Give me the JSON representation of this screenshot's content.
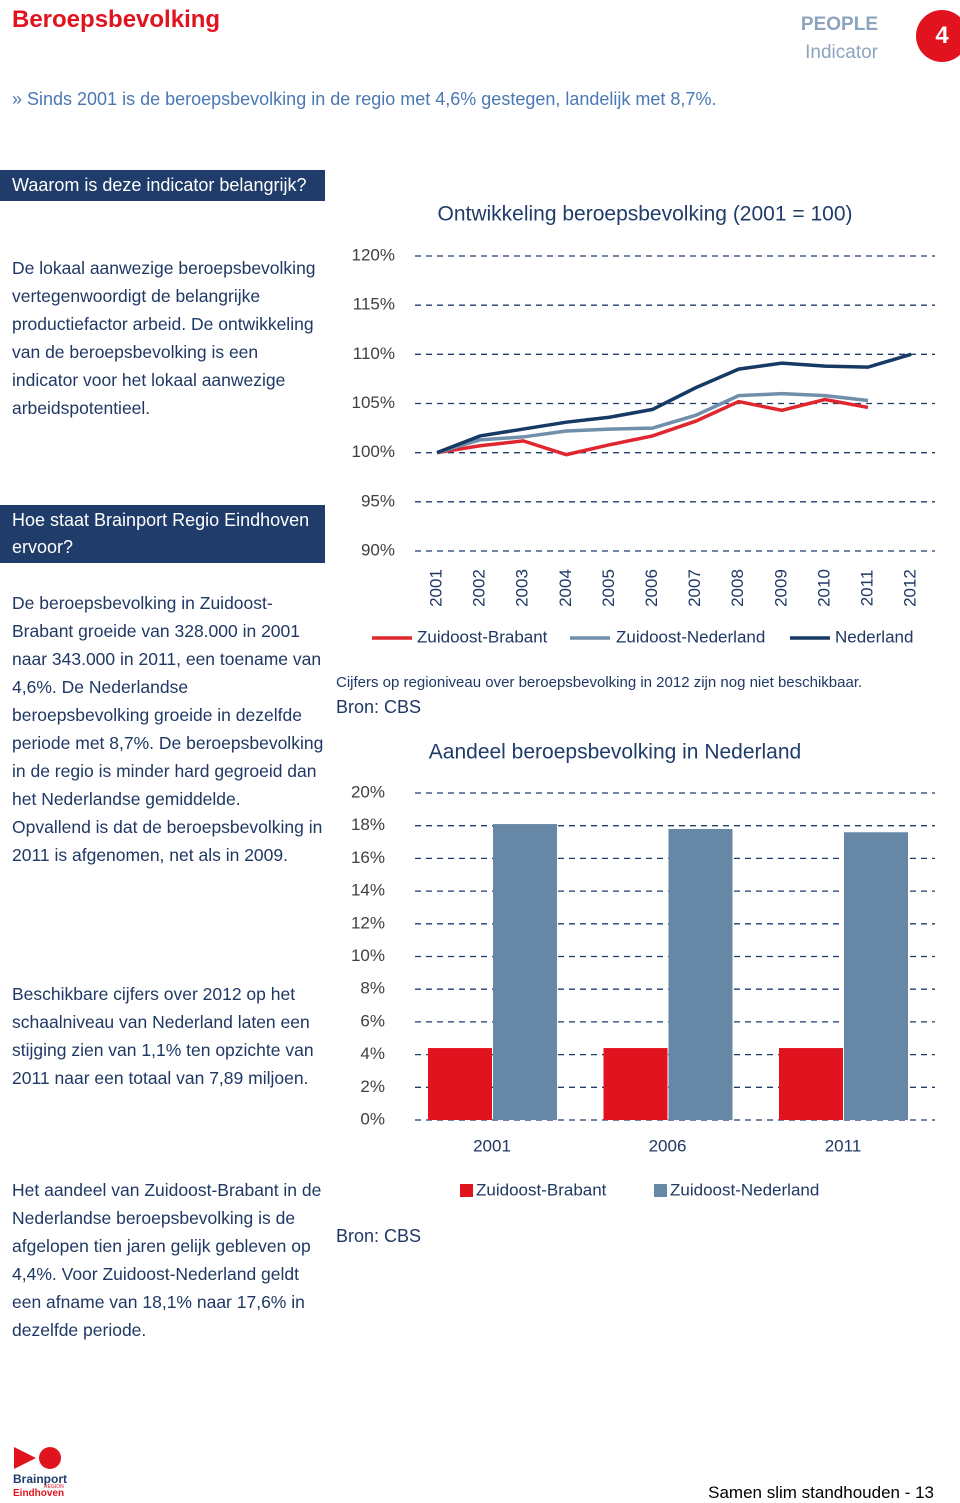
{
  "header": {
    "title": "Beroepsbevolking",
    "tag1": "PEOPLE",
    "tag2": "Indicator",
    "number": "4",
    "summary": "» Sinds 2001 is de beroepsbevolking in de regio met 4,6% gestegen, landelijk met 8,7%."
  },
  "sidebar": {
    "box1": "Waarom is deze indicator belangrijk?",
    "p1": "De lokaal aanwezige beroepsbevolking vertegenwoordigt de belangrijke productiefactor arbeid. De ontwikkeling van de beroepsbevolking is een indicator voor het lokaal aanwezige arbeidspotentieel.",
    "box2": "Hoe staat Brainport Regio Eindhoven  ervoor?",
    "p2": "De beroepsbevolking in Zuidoost-Brabant groeide van 328.000 in 2001 naar 343.000 in 2011, een toename  van 4,6%. De Nederlandse beroepsbevolking groeide in dezelfde periode met 8,7%. De beroepsbevolking in de regio is minder hard gegroeid dan het Nederlandse gemiddelde. Opvallend is dat de beroepsbevolking in 2011 is afgenomen, net als in 2009.",
    "p3": "Beschikbare cijfers over 2012 op het schaalniveau van Nederland laten een stijging zien van 1,1% ten opzichte van 2011 naar een totaal van 7,89 miljoen.",
    "p4": "Het aandeel van Zuidoost-Brabant in de Nederlandse beroepsbevolking is de afgelopen tien jaren gelijk gebleven op 4,4%. Voor Zuidoost-Nederland geldt een afname van 18,1% naar 17,6% in dezelfde periode."
  },
  "notes": {
    "line_note": "Cijfers op regioniveau over beroepsbevolking in 2012 zijn nog niet beschikbaar.",
    "source1": "Bron: CBS",
    "source2": "Bron: CBS"
  },
  "footer": {
    "logo1": "Brainport",
    "logo2": "REGION",
    "logo3": "Eindhoven",
    "page": "Samen slim standhouden  - 13"
  },
  "chart_data": [
    {
      "type": "line",
      "title": "Ontwikkeling beroepsbevolking (2001 = 100)",
      "categories": [
        "2001",
        "2002",
        "2003",
        "2004",
        "2005",
        "2006",
        "2007",
        "2008",
        "2009",
        "2010",
        "2011",
        "2012"
      ],
      "series": [
        {
          "name": "Zuidoost-Brabant",
          "color": "#e0262f",
          "values": [
            100,
            100.7,
            101.2,
            99.8,
            100.8,
            101.7,
            103.2,
            105.2,
            104.3,
            105.4,
            104.6,
            null
          ]
        },
        {
          "name": "Zuidoost-Nederland",
          "color": "#6f8fab",
          "values": [
            100,
            101.3,
            101.6,
            102.2,
            102.4,
            102.5,
            103.8,
            105.8,
            106.0,
            105.8,
            105.3,
            null
          ]
        },
        {
          "name": "Nederland",
          "color": "#163a63",
          "values": [
            100,
            101.7,
            102.4,
            103.1,
            103.6,
            104.4,
            106.6,
            108.5,
            109.1,
            108.8,
            108.7,
            110.0
          ]
        }
      ],
      "ylim": [
        90,
        120
      ],
      "yticks": [
        {
          "value": 90,
          "label": "90%"
        },
        {
          "value": 95,
          "label": "95%"
        },
        {
          "value": 100,
          "label": "100%"
        },
        {
          "value": 105,
          "label": "105%"
        },
        {
          "value": 110,
          "label": "110%"
        },
        {
          "value": 115,
          "label": "115%"
        },
        {
          "value": 120,
          "label": "120%"
        }
      ],
      "grid": true
    },
    {
      "type": "bar",
      "title": "Aandeel beroepsbevolking in Nederland",
      "categories": [
        "2001",
        "2006",
        "2011"
      ],
      "series": [
        {
          "name": "Zuidoost-Brabant",
          "color": "#e1131f",
          "values": [
            4.4,
            4.4,
            4.4
          ]
        },
        {
          "name": "Zuidoost-Nederland",
          "color": "#6787a6",
          "values": [
            18.1,
            17.8,
            17.6
          ]
        }
      ],
      "ylim": [
        0,
        20
      ],
      "yticks": [
        {
          "value": 0,
          "label": "0%"
        },
        {
          "value": 2,
          "label": "2%"
        },
        {
          "value": 4,
          "label": "4%"
        },
        {
          "value": 6,
          "label": "6%"
        },
        {
          "value": 8,
          "label": "8%"
        },
        {
          "value": 10,
          "label": "10%"
        },
        {
          "value": 12,
          "label": "12%"
        },
        {
          "value": 14,
          "label": "14%"
        },
        {
          "value": 16,
          "label": "16%"
        },
        {
          "value": 18,
          "label": "18%"
        },
        {
          "value": 20,
          "label": "20%"
        }
      ],
      "grid": true
    }
  ]
}
